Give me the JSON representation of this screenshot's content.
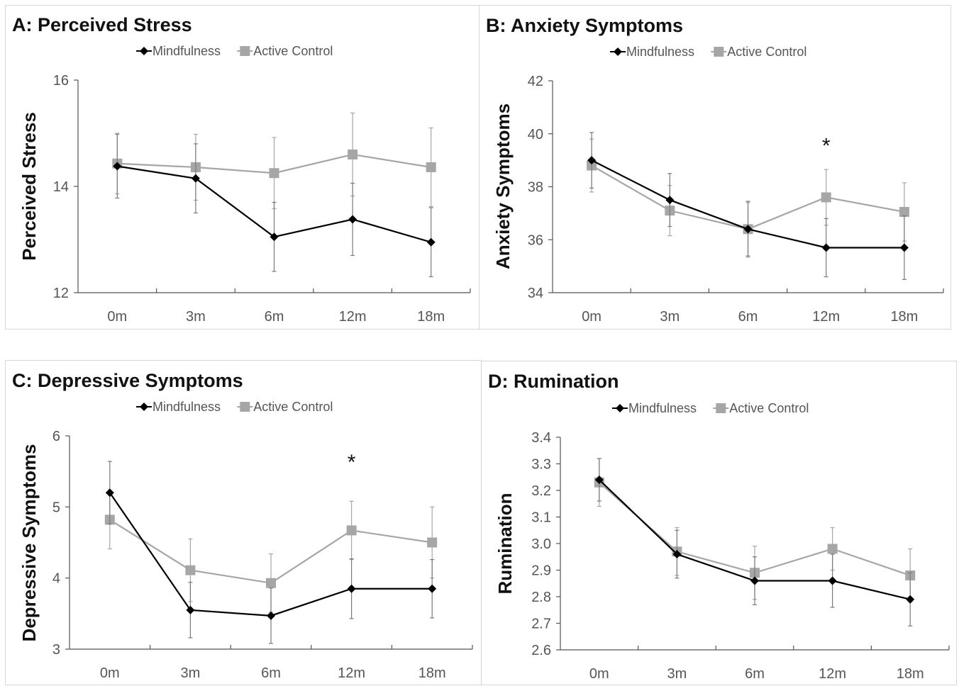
{
  "chart_data": [
    {
      "id": "a",
      "type": "line",
      "title": "A: Perceived Stress",
      "ylabel": "Perceived Stress",
      "xlabel": "",
      "categories": [
        "0m",
        "3m",
        "6m",
        "12m",
        "18m"
      ],
      "ylim": [
        12,
        16
      ],
      "yticks": [
        "12",
        "14",
        "16"
      ],
      "legend": "top-center",
      "grid": false,
      "significance": [],
      "series": [
        {
          "name": "Mindfulness",
          "marker": "diamond",
          "color": "#000000",
          "values": [
            14.38,
            14.15,
            13.05,
            13.38,
            12.95
          ],
          "err": [
            0.6,
            0.65,
            0.65,
            0.68,
            0.65
          ]
        },
        {
          "name": "Active Control",
          "marker": "square",
          "color": "#a6a6a6",
          "values": [
            14.43,
            14.36,
            14.25,
            14.6,
            14.36
          ],
          "err": [
            0.57,
            0.62,
            0.67,
            0.78,
            0.74
          ]
        }
      ]
    },
    {
      "id": "b",
      "type": "line",
      "title": "B: Anxiety Symptoms",
      "ylabel": "Anxiety Symptoms",
      "xlabel": "",
      "categories": [
        "0m",
        "3m",
        "6m",
        "12m",
        "18m"
      ],
      "ylim": [
        34,
        42
      ],
      "yticks": [
        "34",
        "36",
        "38",
        "40",
        "42"
      ],
      "legend": "top-center",
      "grid": false,
      "significance": [
        {
          "category": "12m",
          "label": "*",
          "y": 39.6
        }
      ],
      "series": [
        {
          "name": "Mindfulness",
          "marker": "diamond",
          "color": "#000000",
          "values": [
            39.0,
            37.5,
            36.4,
            35.7,
            35.7
          ],
          "err": [
            1.05,
            1.0,
            1.05,
            1.1,
            1.2
          ]
        },
        {
          "name": "Active Control",
          "marker": "square",
          "color": "#a6a6a6",
          "values": [
            38.8,
            37.1,
            36.4,
            37.6,
            37.05
          ],
          "err": [
            1.0,
            0.95,
            1.0,
            1.05,
            1.1
          ]
        }
      ]
    },
    {
      "id": "c",
      "type": "line",
      "title": "C: Depressive Symptoms",
      "ylabel": "Depressive Symptoms",
      "xlabel": "",
      "categories": [
        "0m",
        "3m",
        "6m",
        "12m",
        "18m"
      ],
      "ylim": [
        3,
        6
      ],
      "yticks": [
        "3",
        "4",
        "5",
        "6"
      ],
      "legend": "top-center",
      "grid": false,
      "significance": [
        {
          "category": "12m",
          "label": "*",
          "y": 5.65
        }
      ],
      "series": [
        {
          "name": "Mindfulness",
          "marker": "diamond",
          "color": "#000000",
          "values": [
            5.2,
            3.55,
            3.47,
            3.85,
            3.85
          ],
          "err": [
            0.44,
            0.39,
            0.39,
            0.42,
            0.41
          ]
        },
        {
          "name": "Active Control",
          "marker": "square",
          "color": "#a6a6a6",
          "values": [
            4.82,
            4.11,
            3.93,
            4.67,
            4.5
          ],
          "err": [
            0.41,
            0.44,
            0.41,
            0.41,
            0.5
          ]
        }
      ]
    },
    {
      "id": "d",
      "type": "line",
      "title": "D: Rumination",
      "ylabel": "Rumination",
      "xlabel": "",
      "categories": [
        "0m",
        "3m",
        "6m",
        "12m",
        "18m"
      ],
      "ylim": [
        2.6,
        3.4
      ],
      "yticks": [
        "2.6",
        "2.7",
        "2.8",
        "2.9",
        "3.0",
        "3.1",
        "3.2",
        "3.3",
        "3.4"
      ],
      "legend": "top-center",
      "grid": false,
      "significance": [],
      "series": [
        {
          "name": "Mindfulness",
          "marker": "diamond",
          "color": "#000000",
          "values": [
            3.24,
            2.96,
            2.86,
            2.86,
            2.79
          ],
          "err": [
            0.08,
            0.09,
            0.09,
            0.1,
            0.1
          ]
        },
        {
          "name": "Active Control",
          "marker": "square",
          "color": "#a6a6a6",
          "values": [
            3.23,
            2.97,
            2.89,
            2.98,
            2.88
          ],
          "err": [
            0.09,
            0.09,
            0.1,
            0.08,
            0.1
          ]
        }
      ]
    }
  ]
}
